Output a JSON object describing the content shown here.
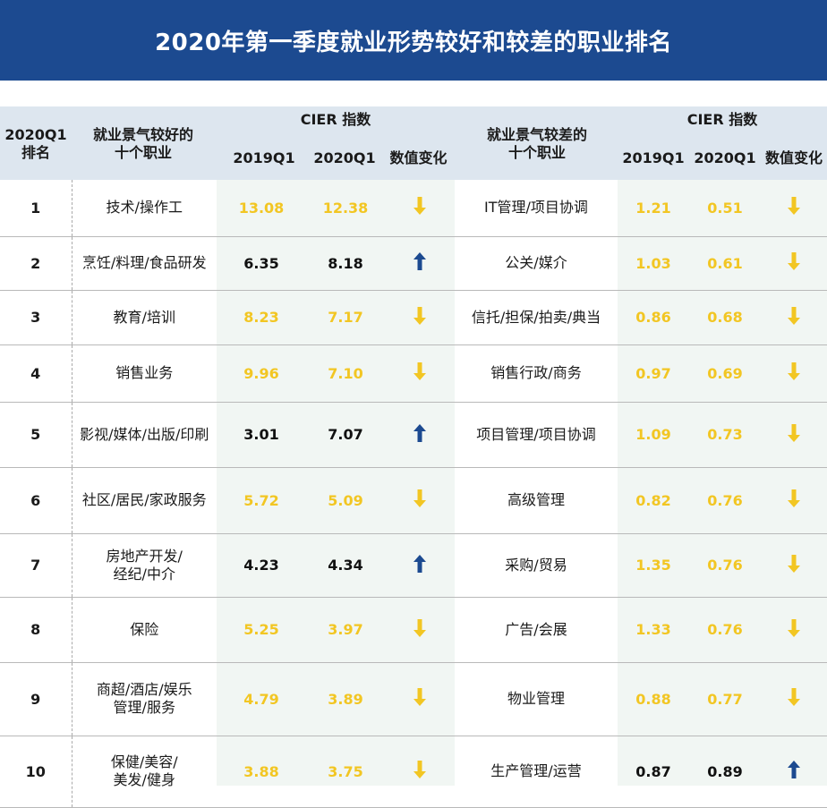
{
  "title": "2020年第一季度就业形势较好和较差的职业排名",
  "colors": {
    "title_bg": "#1c4a90",
    "header_bg": "#dde6ef",
    "decline_value": "#f2c623",
    "increase_value": "#111111",
    "up_arrow": "#1c4a90",
    "down_arrow": "#f2c623"
  },
  "header": {
    "rank_line1": "2020Q1",
    "rank_line2": "排名",
    "good_line1": "就业景气较好的",
    "good_line2": "十个职业",
    "bad_line1": "就业景气较差的",
    "bad_line2": "十个职业",
    "cier_left": "CIER 指数",
    "cier_right": "CIER 指数",
    "col_2019_left": "2019Q1",
    "col_2020_left": "2020Q1",
    "col_change_left": "数值变化",
    "col_2019_right": "2019Q1",
    "col_2020_right": "2020Q1",
    "col_change_right": "数值变化"
  },
  "chart_data": {
    "type": "table",
    "title": "2020年第一季度就业形势较好和较差的职业排名",
    "columns": [
      "2020Q1 排名",
      "就业景气较好的十个职业",
      "2019Q1",
      "2020Q1",
      "数值变化",
      "就业景气较差的十个职业",
      "2019Q1",
      "2020Q1",
      "数值变化"
    ],
    "rows": [
      {
        "rank": "1",
        "good": {
          "name": [
            "技术/操作工"
          ],
          "y2019": "13.08",
          "y2020": "12.38",
          "change": "down"
        },
        "bad": {
          "name": [
            "IT管理/项目协调"
          ],
          "y2019": "1.21",
          "y2020": "0.51",
          "change": "down"
        }
      },
      {
        "rank": "2",
        "good": {
          "name": [
            "烹饪/料理/食品研发"
          ],
          "y2019": "6.35",
          "y2020": "8.18",
          "change": "up"
        },
        "bad": {
          "name": [
            "公关/媒介"
          ],
          "y2019": "1.03",
          "y2020": "0.61",
          "change": "down"
        }
      },
      {
        "rank": "3",
        "good": {
          "name": [
            "教育/培训"
          ],
          "y2019": "8.23",
          "y2020": "7.17",
          "change": "down"
        },
        "bad": {
          "name": [
            "信托/担保/拍卖/典当"
          ],
          "y2019": "0.86",
          "y2020": "0.68",
          "change": "down"
        }
      },
      {
        "rank": "4",
        "good": {
          "name": [
            "销售业务"
          ],
          "y2019": "9.96",
          "y2020": "7.10",
          "change": "down"
        },
        "bad": {
          "name": [
            "销售行政/商务"
          ],
          "y2019": "0.97",
          "y2020": "0.69",
          "change": "down"
        }
      },
      {
        "rank": "5",
        "good": {
          "name": [
            "影视/媒体/出版/印刷"
          ],
          "y2019": "3.01",
          "y2020": "7.07",
          "change": "up"
        },
        "bad": {
          "name": [
            "项目管理/项目协调"
          ],
          "y2019": "1.09",
          "y2020": "0.73",
          "change": "down"
        }
      },
      {
        "rank": "6",
        "good": {
          "name": [
            "社区/居民/家政服务"
          ],
          "y2019": "5.72",
          "y2020": "5.09",
          "change": "down"
        },
        "bad": {
          "name": [
            "高级管理"
          ],
          "y2019": "0.82",
          "y2020": "0.76",
          "change": "down"
        }
      },
      {
        "rank": "7",
        "good": {
          "name": [
            "房地产开发/",
            "经纪/中介"
          ],
          "y2019": "4.23",
          "y2020": "4.34",
          "change": "up"
        },
        "bad": {
          "name": [
            "采购/贸易"
          ],
          "y2019": "1.35",
          "y2020": "0.76",
          "change": "down"
        }
      },
      {
        "rank": "8",
        "good": {
          "name": [
            "保险"
          ],
          "y2019": "5.25",
          "y2020": "3.97",
          "change": "down"
        },
        "bad": {
          "name": [
            "广告/会展"
          ],
          "y2019": "1.33",
          "y2020": "0.76",
          "change": "down"
        }
      },
      {
        "rank": "9",
        "good": {
          "name": [
            "商超/酒店/娱乐",
            "管理/服务"
          ],
          "y2019": "4.79",
          "y2020": "3.89",
          "change": "down"
        },
        "bad": {
          "name": [
            "物业管理"
          ],
          "y2019": "0.88",
          "y2020": "0.77",
          "change": "down"
        }
      },
      {
        "rank": "10",
        "good": {
          "name": [
            "保健/美容/",
            "美发/健身"
          ],
          "y2019": "3.88",
          "y2020": "3.75",
          "change": "down"
        },
        "bad": {
          "name": [
            "生产管理/运营"
          ],
          "y2019": "0.87",
          "y2020": "0.89",
          "change": "up"
        }
      }
    ]
  }
}
